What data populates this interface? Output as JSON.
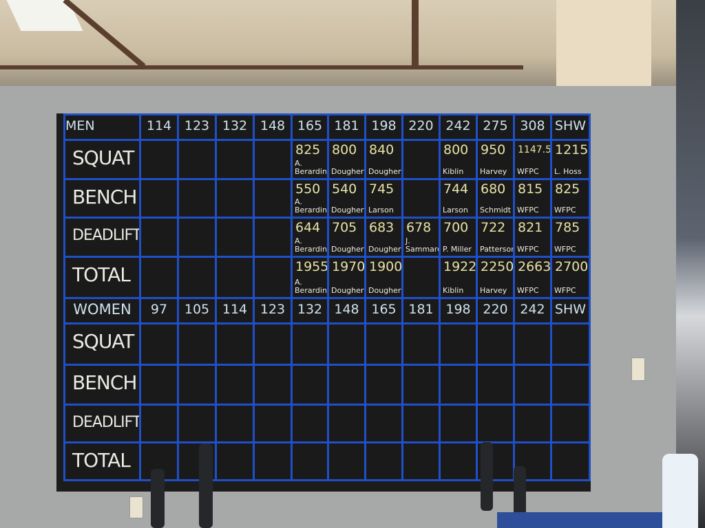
{
  "board": {
    "men_label": "MEN",
    "women_label": "WOMEN",
    "men_classes": [
      "114",
      "123",
      "132",
      "148",
      "165",
      "181",
      "198",
      "220",
      "242",
      "275",
      "308",
      "SHW"
    ],
    "women_classes": [
      "97",
      "105",
      "114",
      "123",
      "132",
      "148",
      "165",
      "181",
      "198",
      "220",
      "242",
      "SHW"
    ],
    "lift_labels": [
      "SQUAT",
      "BENCH",
      "DEADLIFT",
      "TOTAL"
    ],
    "men_records": [
      [
        {
          "v": "",
          "n": ""
        },
        {
          "v": "",
          "n": ""
        },
        {
          "v": "",
          "n": ""
        },
        {
          "v": "",
          "n": ""
        },
        {
          "v": "825",
          "n": "A. Berardinelli"
        },
        {
          "v": "800",
          "n": "Dougherty"
        },
        {
          "v": "840",
          "n": "Dougherty"
        },
        {
          "v": "",
          "n": ""
        },
        {
          "v": "800",
          "n": "Kiblin"
        },
        {
          "v": "950",
          "n": "Harvey"
        },
        {
          "v": "1147.5",
          "n": "WFPC"
        },
        {
          "v": "1215",
          "n": "L. Hoss"
        }
      ],
      [
        {
          "v": "",
          "n": ""
        },
        {
          "v": "",
          "n": ""
        },
        {
          "v": "",
          "n": ""
        },
        {
          "v": "",
          "n": ""
        },
        {
          "v": "550",
          "n": "A. Berardinelli"
        },
        {
          "v": "540",
          "n": "Dougherty"
        },
        {
          "v": "745",
          "n": "Larson"
        },
        {
          "v": "",
          "n": ""
        },
        {
          "v": "744",
          "n": "Larson"
        },
        {
          "v": "680",
          "n": "Schmidt"
        },
        {
          "v": "815",
          "n": "WFPC"
        },
        {
          "v": "825",
          "n": "WFPC"
        }
      ],
      [
        {
          "v": "",
          "n": ""
        },
        {
          "v": "",
          "n": ""
        },
        {
          "v": "",
          "n": ""
        },
        {
          "v": "",
          "n": ""
        },
        {
          "v": "644",
          "n": "A. Berardinelli"
        },
        {
          "v": "705",
          "n": "Dougherty"
        },
        {
          "v": "683",
          "n": "Dougherty"
        },
        {
          "v": "678",
          "n": "J. Sammarco"
        },
        {
          "v": "700",
          "n": "P. Miller"
        },
        {
          "v": "722",
          "n": "Patterson"
        },
        {
          "v": "821",
          "n": "WFPC"
        },
        {
          "v": "785",
          "n": "WFPC"
        }
      ],
      [
        {
          "v": "",
          "n": ""
        },
        {
          "v": "",
          "n": ""
        },
        {
          "v": "",
          "n": ""
        },
        {
          "v": "",
          "n": ""
        },
        {
          "v": "1955",
          "n": "A. Berardinelli"
        },
        {
          "v": "1970",
          "n": "Dougherty"
        },
        {
          "v": "1900",
          "n": "Dougherty"
        },
        {
          "v": "",
          "n": ""
        },
        {
          "v": "1922",
          "n": "Kiblin"
        },
        {
          "v": "2250",
          "n": "Harvey"
        },
        {
          "v": "2663",
          "n": "WFPC"
        },
        {
          "v": "2700",
          "n": "WFPC"
        }
      ]
    ]
  },
  "colors": {
    "tape": "#2050c8",
    "chalkboard": "#1a1a1a",
    "wall": "#a7a9a9"
  }
}
